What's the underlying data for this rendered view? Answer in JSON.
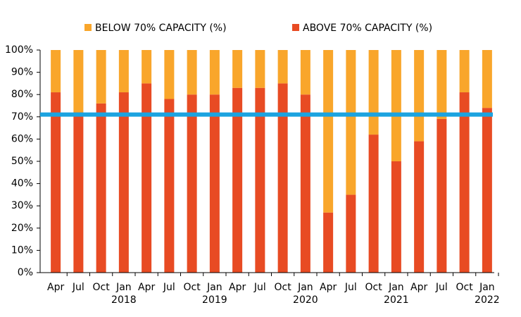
{
  "chart_data": {
    "type": "stacked-bar",
    "categories": [
      "Apr",
      "Jul",
      "Oct",
      "Jan",
      "Apr",
      "Jul",
      "Oct",
      "Jan",
      "Apr",
      "Jul",
      "Oct",
      "Jan",
      "Apr",
      "Jul",
      "Oct",
      "Jan",
      "Apr",
      "Jul",
      "Oct",
      "Jan"
    ],
    "year_labels": [
      null,
      null,
      null,
      "2018",
      null,
      null,
      null,
      "2019",
      null,
      null,
      null,
      "2020",
      null,
      null,
      null,
      "2021",
      null,
      null,
      null,
      "2022"
    ],
    "series": [
      {
        "name": "BELOW 70% CAPACITY (%)",
        "color": "#f9a62b",
        "values": [
          19,
          28,
          24,
          19,
          15,
          22,
          20,
          20,
          17,
          17,
          15,
          20,
          73,
          65,
          38,
          50,
          41,
          31,
          19,
          26
        ]
      },
      {
        "name": "ABOVE 70% CAPACITY (%)",
        "color": "#e84b23",
        "values": [
          81,
          72,
          76,
          81,
          85,
          78,
          80,
          80,
          83,
          83,
          85,
          80,
          27,
          35,
          62,
          50,
          59,
          69,
          81,
          74
        ]
      }
    ],
    "reference_line": {
      "value": 71,
      "color": "#1ba3e0"
    },
    "ylim": [
      0,
      100
    ],
    "yticks": [
      {
        "value": 0,
        "label": "0%"
      },
      {
        "value": 10,
        "label": "10%"
      },
      {
        "value": 20,
        "label": "20%"
      },
      {
        "value": 30,
        "label": "30%"
      },
      {
        "value": 40,
        "label": "40%"
      },
      {
        "value": 50,
        "label": "50%"
      },
      {
        "value": 60,
        "label": "60%"
      },
      {
        "value": 70,
        "label": "70%"
      },
      {
        "value": 80,
        "label": "80%"
      },
      {
        "value": 90,
        "label": "90%"
      },
      {
        "value": 100,
        "label": "100%"
      }
    ],
    "legend": "top"
  }
}
